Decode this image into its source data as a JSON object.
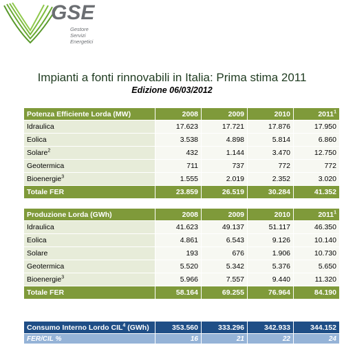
{
  "logo": {
    "name": "GSE",
    "sub1": "Gestore",
    "sub2": "Servizi",
    "sub3": "Energetici"
  },
  "title": "Impianti a fonti rinnovabili in Italia: Prima stima 2011",
  "subtitle": "Edizione  06/03/2012",
  "years": [
    "2008",
    "2009",
    "2010",
    "2011"
  ],
  "year_2011_note": "1",
  "potenza": {
    "header": "Potenza Efficiente Lorda  (MW)",
    "rows": [
      {
        "label": "Idraulica",
        "note": "",
        "values": [
          "17.623",
          "17.721",
          "17.876",
          "17.950"
        ]
      },
      {
        "label": "Eolica",
        "note": "",
        "values": [
          "3.538",
          "4.898",
          "5.814",
          "6.860"
        ]
      },
      {
        "label": "Solare",
        "note": "2",
        "values": [
          "432",
          "1.144",
          "3.470",
          "12.750"
        ]
      },
      {
        "label": "Geotermica",
        "note": "",
        "values": [
          "711",
          "737",
          "772",
          "772"
        ]
      },
      {
        "label": "Bioenergie",
        "note": "3",
        "values": [
          "1.555",
          "2.019",
          "2.352",
          "3.020"
        ]
      }
    ],
    "total": {
      "label": "Totale FER",
      "values": [
        "23.859",
        "26.519",
        "30.284",
        "41.352"
      ]
    }
  },
  "produzione": {
    "header": "Produzione Lorda  (GWh)",
    "rows": [
      {
        "label": "Idraulica",
        "note": "",
        "values": [
          "41.623",
          "49.137",
          "51.117",
          "46.350"
        ]
      },
      {
        "label": "Eolica",
        "note": "",
        "values": [
          "4.861",
          "6.543",
          "9.126",
          "10.140"
        ]
      },
      {
        "label": "Solare",
        "note": "",
        "values": [
          "193",
          "676",
          "1.906",
          "10.730"
        ]
      },
      {
        "label": "Geotermica",
        "note": "",
        "values": [
          "5.520",
          "5.342",
          "5.376",
          "5.650"
        ]
      },
      {
        "label": "Bioenergie",
        "note": "3",
        "values": [
          "5.966",
          "7.557",
          "9.440",
          "11.320"
        ]
      }
    ],
    "total": {
      "label": "Totale FER",
      "values": [
        "58.164",
        "69.255",
        "76.964",
        "84.190"
      ]
    }
  },
  "consumo": {
    "label": "Consumo Interno Lordo CIL",
    "note": "4",
    "unit": " (GWh)",
    "values": [
      "353.560",
      "333.296",
      "342.933",
      "344.152"
    ],
    "pct_label": "FER/CIL %",
    "pct_values": [
      "16",
      "21",
      "22",
      "24"
    ]
  },
  "colors": {
    "green_header": "#7f9a3a",
    "blue_header": "#1f4e86",
    "light_blue": "#95b3d7",
    "row_bg": "#e7ecd9"
  }
}
